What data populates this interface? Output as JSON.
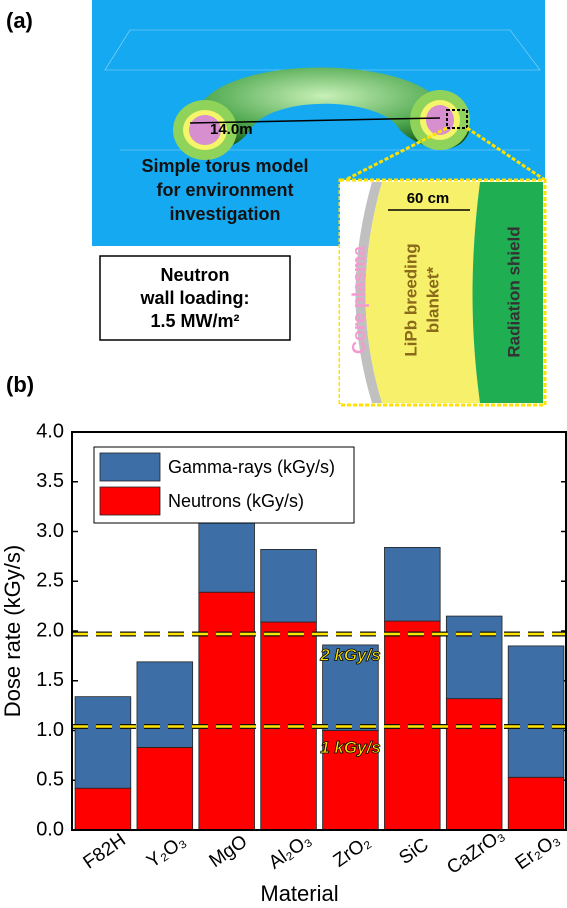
{
  "panel_a": {
    "label": "(a)",
    "torus_diameter": "14.0m",
    "model_caption": [
      "Simple torus model",
      "for environment",
      "investigation"
    ],
    "wall_loading": [
      "Neutron",
      "wall loading:",
      "1.5 MW/m²"
    ],
    "inset": {
      "thickness": "60 cm",
      "core": "Core plasma",
      "blanket": [
        "LiPb breeding",
        "blanket*"
      ],
      "shield": "Radiation shield"
    }
  },
  "panel_b_label": "(b)",
  "chart_data": {
    "type": "stacked_bar",
    "xlabel": "Material",
    "ylabel": "Dose rate (kGy/s)",
    "categories": [
      "F82H",
      "Y₂O₃",
      "MgO",
      "Al₂O₃",
      "ZrO₂",
      "SiC",
      "CaZrO₃",
      "Er₂O₃"
    ],
    "series": [
      {
        "name": "Gamma-rays (kGy/s)",
        "color": "#3d6fa6",
        "values": [
          0.92,
          0.86,
          0.75,
          0.73,
          0.86,
          0.74,
          0.83,
          1.32
        ]
      },
      {
        "name": "Neutrons (kGy/s)",
        "color": "#ff0000",
        "values": [
          0.42,
          0.83,
          2.39,
          2.09,
          1.0,
          2.1,
          1.32,
          0.53
        ]
      }
    ],
    "ylim": [
      0,
      4
    ],
    "yticks": [
      {
        "value": 0,
        "label": "0.0"
      },
      0.5,
      {
        "value": 1,
        "label": "1.0"
      },
      1.5,
      {
        "value": 2,
        "label": "2.0"
      },
      2.5,
      {
        "value": 3,
        "label": "3.0"
      },
      3.5,
      {
        "value": 4,
        "label": "4.0"
      }
    ],
    "reference_lines": [
      {
        "value": 1.97,
        "label": "2 kGy/s"
      },
      {
        "value": 1.04,
        "label": "1 kGy/s"
      }
    ],
    "legend": "upper left"
  }
}
